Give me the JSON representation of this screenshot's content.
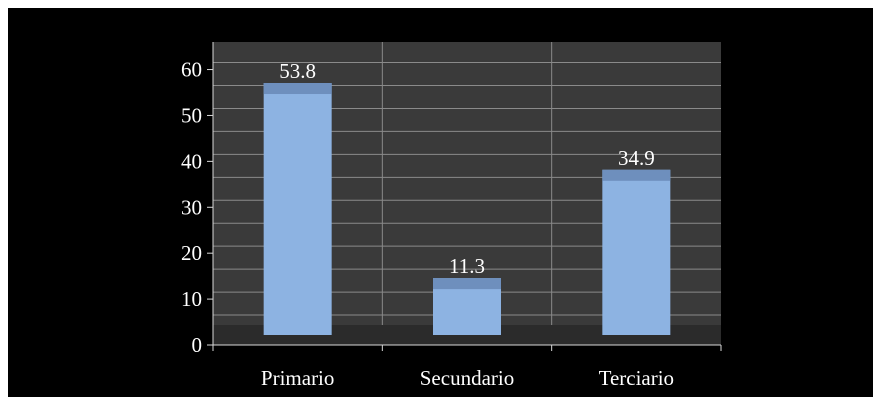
{
  "chart_data": {
    "type": "bar",
    "categories": [
      "Primario",
      "Secundario",
      "Terciario"
    ],
    "values": [
      53.8,
      11.3,
      34.9
    ],
    "data_labels": [
      "53.8",
      "11.3",
      "34.9"
    ],
    "title": "",
    "xlabel": "",
    "ylabel": "",
    "ylim": [
      0,
      66
    ],
    "yticks": [
      0,
      10,
      20,
      30,
      40,
      50,
      60
    ],
    "ytick_labels": [
      "0",
      "10",
      "20",
      "30",
      "40",
      "50",
      "60"
    ],
    "grid": true,
    "legend": "none",
    "colors": {
      "background": "#000000",
      "plot_area": "#3a3a3a",
      "plot_floor": "#2b2b2b",
      "bar": "#8db3e2",
      "bar_top": "#6e8fbd",
      "grid": "#8a8a8a",
      "axis": "#d9d9d9",
      "text": "#ffffff"
    }
  }
}
